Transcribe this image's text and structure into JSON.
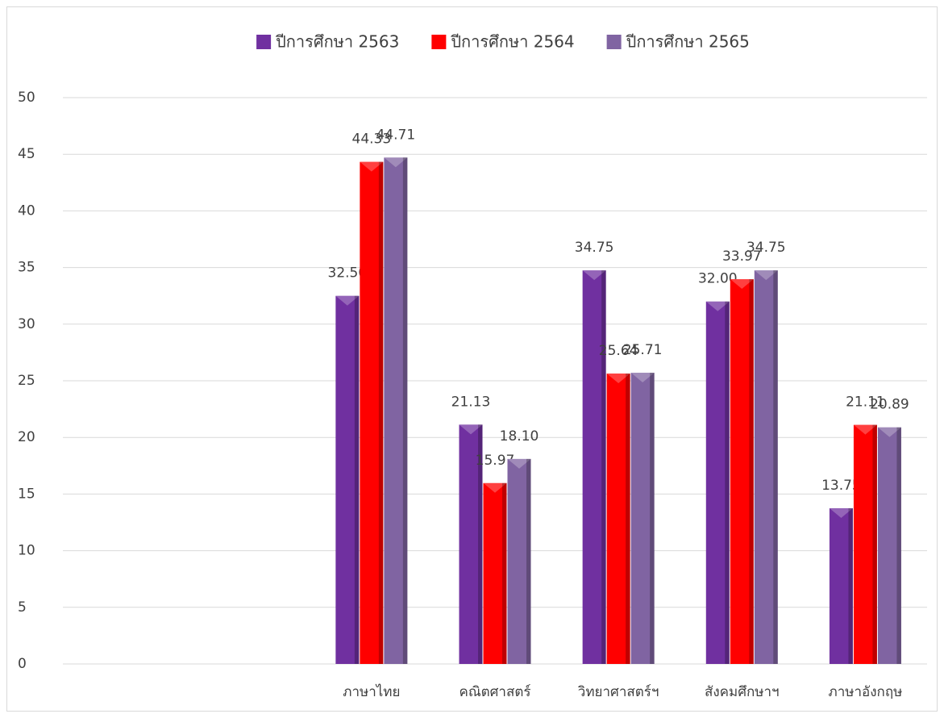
{
  "chart_data": {
    "type": "bar",
    "categories": [
      null,
      null,
      "ภาษาไทย",
      "คณิตศาสตร์",
      "วิทยาศาสตร์ฯ",
      "สังคมศึกษาฯ",
      "ภาษาอังกฤษ"
    ],
    "series": [
      {
        "name": "ปีการศึกษา 2563",
        "color": "#7030a0",
        "values": [
          null,
          null,
          32.5,
          21.13,
          34.75,
          32,
          13.75
        ],
        "value_labels": [
          null,
          null,
          "32.50",
          "21.13",
          "34.75",
          "32.00",
          "13.75"
        ]
      },
      {
        "name": "ปีการศึกษา 2564",
        "color": "#ff0000",
        "values": [
          null,
          null,
          44.33,
          15.97,
          25.64,
          33.97,
          21.11
        ],
        "value_labels": [
          null,
          null,
          "44.33",
          "15.97",
          "25.64",
          "33.97",
          "21.11"
        ]
      },
      {
        "name": "ปีการศึกษา 2565",
        "color": "#8064a2",
        "values": [
          null,
          null,
          44.71,
          18.1,
          25.71,
          34.75,
          20.89
        ],
        "value_labels": [
          null,
          null,
          "44.71",
          "18.10",
          "25.71",
          "34.75",
          "20.89"
        ]
      }
    ],
    "ylim": [
      0,
      50
    ],
    "yticks": [
      0,
      5,
      10,
      15,
      20,
      25,
      30,
      35,
      40,
      45,
      50
    ],
    "grid": true,
    "legend": "top"
  }
}
